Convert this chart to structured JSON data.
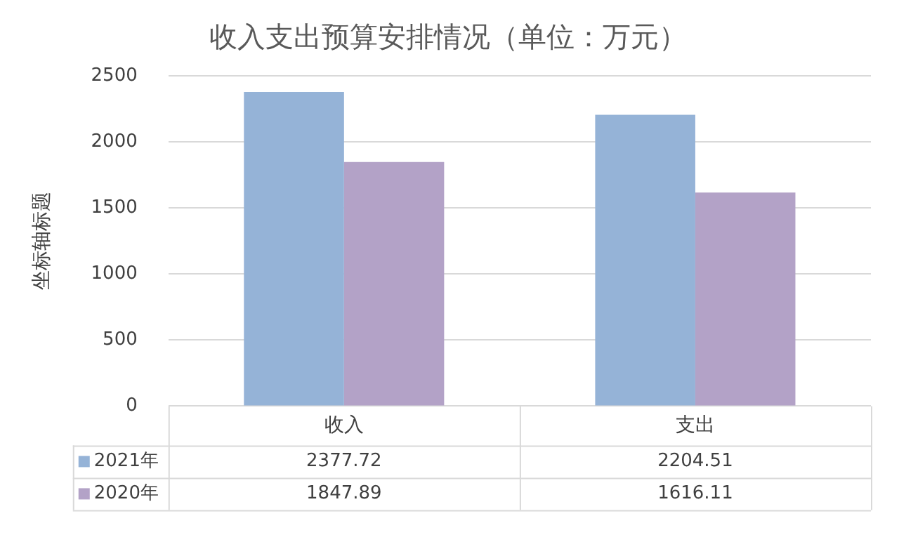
{
  "chart_data": {
    "type": "bar",
    "title": "收入支出预算安排情况（单位：万元）",
    "ylabel": "坐标轴标题",
    "categories": [
      "收入",
      "支出"
    ],
    "series": [
      {
        "name": "2021年",
        "color": "#95b3d7",
        "values": [
          2377.72,
          2204.51
        ]
      },
      {
        "name": "2020年",
        "color": "#b3a2c7",
        "values": [
          1847.89,
          1616.11
        ]
      }
    ],
    "ylim": [
      0,
      2500
    ],
    "yticks": [
      0,
      500,
      1000,
      1500,
      2000,
      2500
    ],
    "grid": "y",
    "data_labels": true,
    "legend": "bottom"
  }
}
